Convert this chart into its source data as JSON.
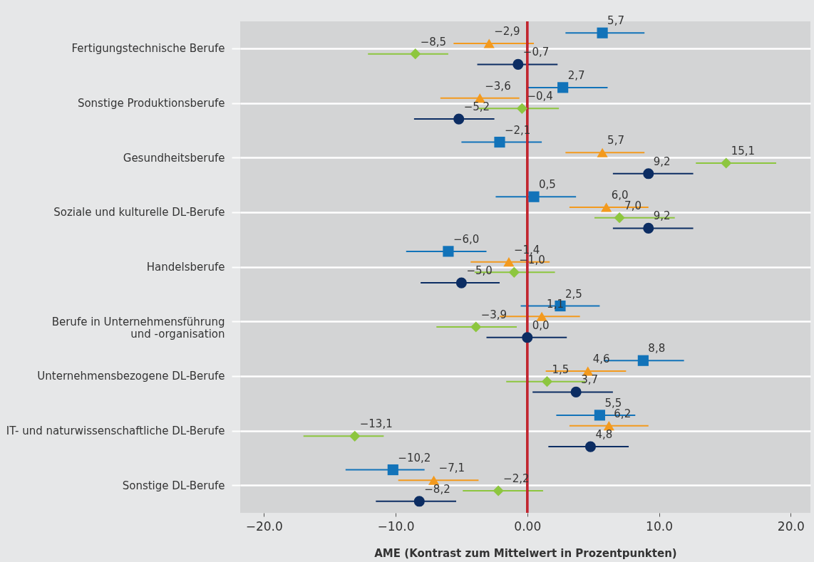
{
  "chart_data": {
    "type": "scatter",
    "xlabel": "AME (Kontrast zum Mittelwert in Prozentpunkten)",
    "categories": [
      "Fertigungstechnische Berufe",
      "Sonstige Produktionsberufe",
      "Gesundheitsberufe",
      "Soziale und kulturelle DL-Berufe",
      "Handelsberufe",
      "Berufe in Unternehmensführung\nund -organisation",
      "Unternehmensbezogene DL-Berufe",
      "IT- und naturwissenschaftliche DL-Berufe",
      "Sonstige DL-Berufe"
    ],
    "orientation": "horizontal",
    "series": [
      {
        "color": "#1273b9",
        "marker": "square",
        "values": [
          5.7,
          2.7,
          -2.1,
          0.5,
          -6.0,
          2.5,
          8.8,
          5.5,
          -10.2
        ],
        "value_labels": [
          "5,7",
          "2,7",
          "−2,1",
          "0,5",
          "−6,0",
          "2,5",
          "8,8",
          "5,5",
          "−10,2"
        ],
        "errors": [
          [
            2.9,
            8.9
          ],
          [
            0.0,
            6.1
          ],
          [
            -5.0,
            1.1
          ],
          [
            -2.4,
            3.7
          ],
          [
            -9.2,
            -3.1
          ],
          [
            -0.5,
            5.5
          ],
          [
            5.8,
            11.9
          ],
          [
            2.2,
            8.2
          ],
          [
            -13.8,
            -7.8
          ]
        ]
      },
      {
        "color": "#f39a1e",
        "marker": "triangle",
        "values": [
          -2.9,
          -3.6,
          5.7,
          6.0,
          -1.4,
          1.1,
          4.6,
          6.2,
          -7.1
        ],
        "value_labels": [
          "−2,9",
          "−3,6",
          "5,7",
          "6,0",
          "−1,4",
          "1,1",
          "4,6",
          "6,2",
          "−7,1"
        ],
        "errors": [
          [
            -5.6,
            0.5
          ],
          [
            -6.6,
            -0.6
          ],
          [
            2.9,
            8.9
          ],
          [
            3.2,
            9.2
          ],
          [
            -4.3,
            1.7
          ],
          [
            -2.1,
            4.0
          ],
          [
            1.4,
            7.5
          ],
          [
            3.2,
            9.2
          ],
          [
            -9.8,
            -3.7
          ]
        ]
      },
      {
        "color": "#8dc63f",
        "marker": "diamond",
        "values": [
          -8.5,
          -0.4,
          15.1,
          7.0,
          -1.0,
          -3.9,
          1.5,
          -13.1,
          -2.2
        ],
        "value_labels": [
          "−8,5",
          "−0,4",
          "15,1",
          "7,0",
          "−1,0",
          "−3,9",
          "1,5",
          "−13,1",
          "−2,2"
        ],
        "errors": [
          [
            -12.1,
            -6.0
          ],
          [
            -3.7,
            2.4
          ],
          [
            12.8,
            18.9
          ],
          [
            5.1,
            11.2
          ],
          [
            -4.0,
            2.1
          ],
          [
            -6.9,
            -0.8
          ],
          [
            -1.6,
            4.4
          ],
          [
            -17.0,
            -10.9
          ],
          [
            -4.9,
            1.2
          ]
        ]
      },
      {
        "color": "#0c2d63",
        "marker": "circle",
        "values": [
          -0.7,
          -5.2,
          9.2,
          9.2,
          -5.0,
          0.0,
          3.7,
          4.8,
          -8.2
        ],
        "value_labels": [
          "−0,7",
          "−5,2",
          "9,2",
          "9,2",
          "−5,0",
          "0,0",
          "3,7",
          "4,8",
          "−8,2"
        ],
        "errors": [
          [
            -3.8,
            2.3
          ],
          [
            -8.6,
            -2.5
          ],
          [
            6.5,
            12.6
          ],
          [
            6.5,
            12.6
          ],
          [
            -8.1,
            -2.1
          ],
          [
            -3.1,
            3.0
          ],
          [
            0.4,
            6.5
          ],
          [
            1.6,
            7.7
          ],
          [
            -11.5,
            -5.4
          ]
        ]
      }
    ],
    "xlim": [
      -21.8,
      21.5
    ],
    "xticks": [
      {
        "value": -20,
        "label": "−20.0"
      },
      {
        "value": -10,
        "label": "−10.0"
      },
      {
        "value": 0,
        "label": "0.00"
      },
      {
        "value": 10,
        "label": "10.0"
      },
      {
        "value": 20,
        "label": "20.0"
      }
    ],
    "ref_lines": [
      {
        "axis": "x",
        "value": 0,
        "color": "#c0272d"
      }
    ],
    "grid": "y"
  }
}
